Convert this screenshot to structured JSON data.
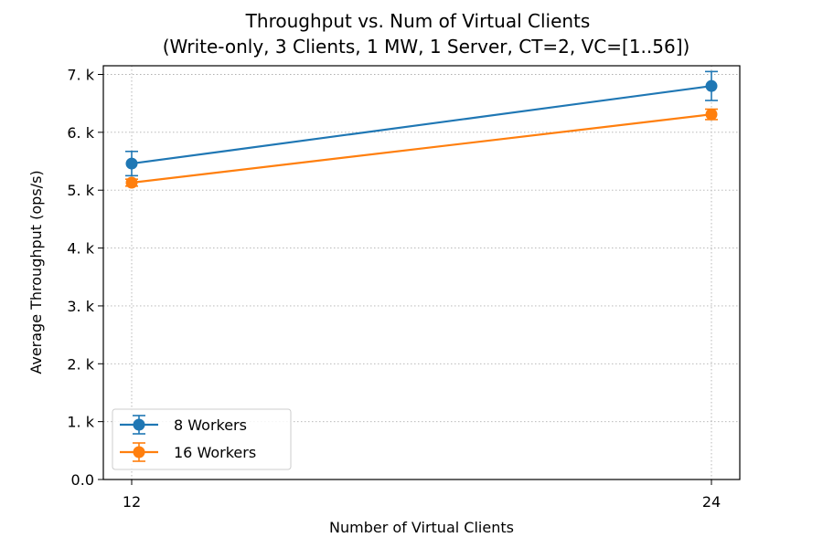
{
  "chart_data": {
    "type": "line",
    "title": "Throughput vs. Num of Virtual Clients",
    "subtitle": "(Write-only, 3 Clients, 1 MW, 1 Server, CT=2, VC=[1..56])",
    "xlabel": "Number of Virtual Clients",
    "ylabel": "Average Throughput (ops/s)",
    "x": [
      12,
      24
    ],
    "x_tick_labels": [
      "12",
      "24"
    ],
    "ylim": [
      0,
      7150
    ],
    "y_ticks": [
      0,
      1000,
      2000,
      3000,
      4000,
      5000,
      6000,
      7000
    ],
    "y_tick_labels": [
      "0.0",
      "1. k",
      "2. k",
      "3. k",
      "4. k",
      "5. k",
      "6. k",
      "7. k"
    ],
    "grid": true,
    "legend_position": "lower-left",
    "series": [
      {
        "name": "8 Workers",
        "color": "#1f77b4",
        "values": [
          5460,
          6800
        ],
        "error": [
          210,
          250
        ]
      },
      {
        "name": "16 Workers",
        "color": "#ff7f0e",
        "values": [
          5130,
          6310
        ],
        "error": [
          60,
          90
        ]
      }
    ]
  }
}
